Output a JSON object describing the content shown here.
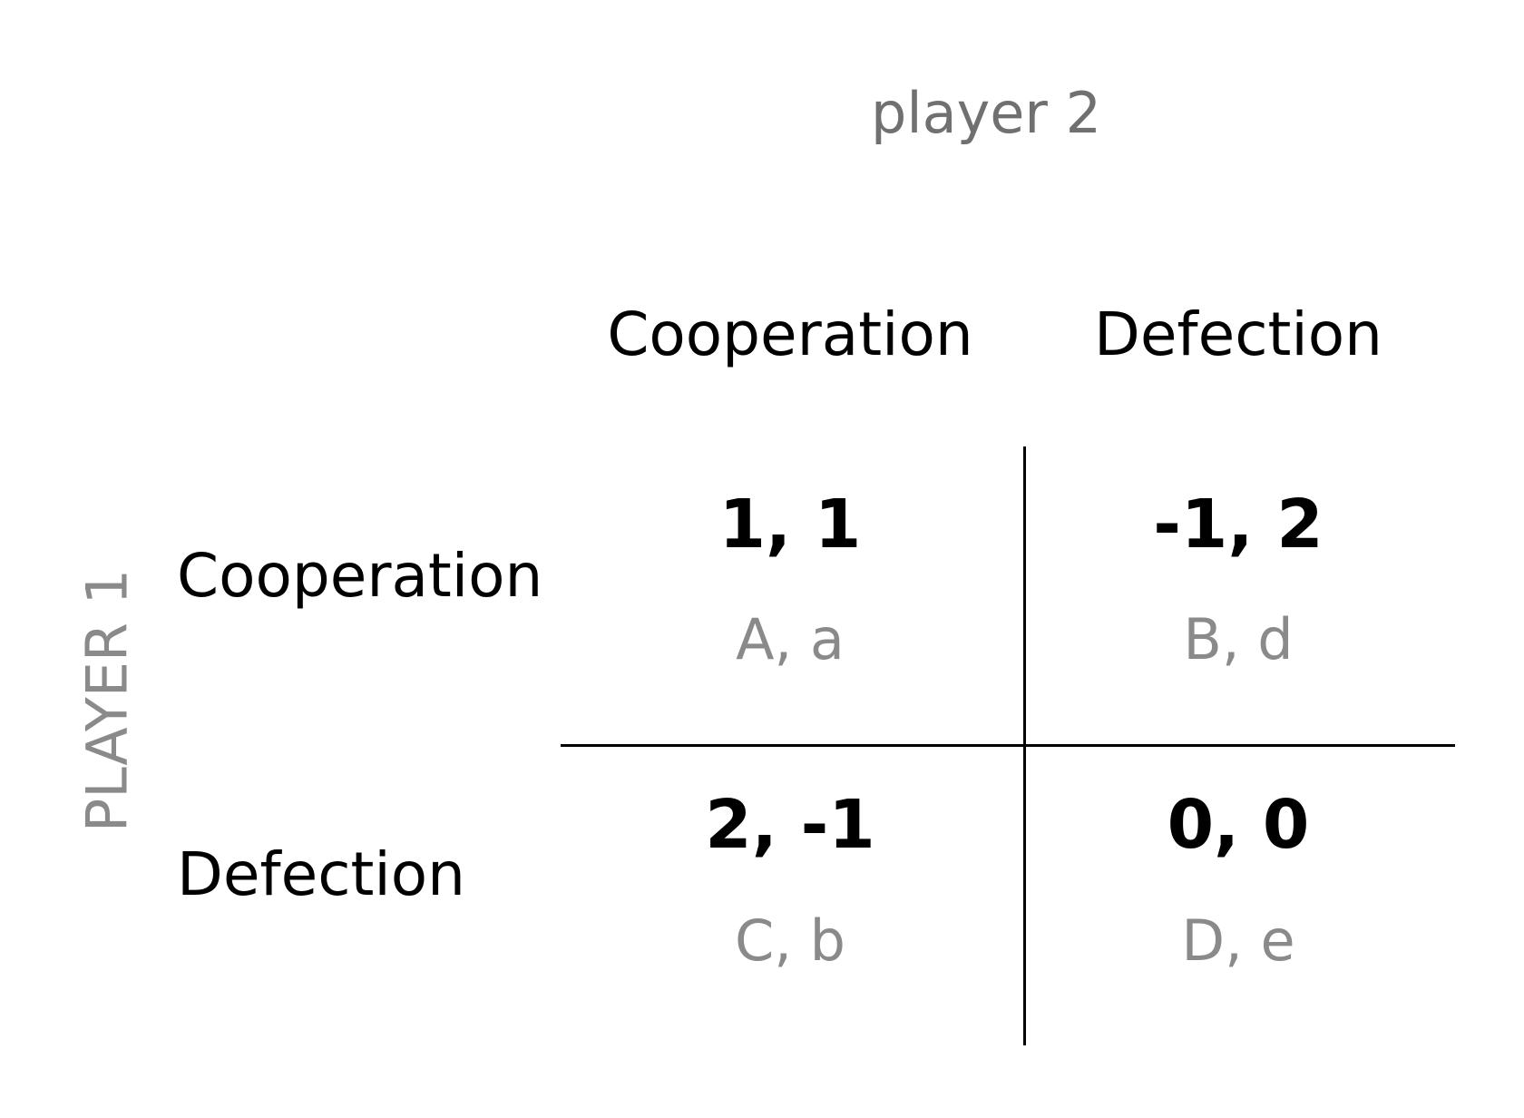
{
  "player2_label": "player 2",
  "player1_label": "PLAYER 1",
  "columns": [
    "Cooperation",
    "Defection"
  ],
  "rows": [
    "Cooperation",
    "Defection"
  ],
  "cells": [
    [
      {
        "payoff": "1, 1",
        "label": "A, a"
      },
      {
        "payoff": "-1, 2",
        "label": "B, d"
      }
    ],
    [
      {
        "payoff": "2, -1",
        "label": "C, b"
      },
      {
        "payoff": "0, 0",
        "label": "D, e"
      }
    ]
  ]
}
